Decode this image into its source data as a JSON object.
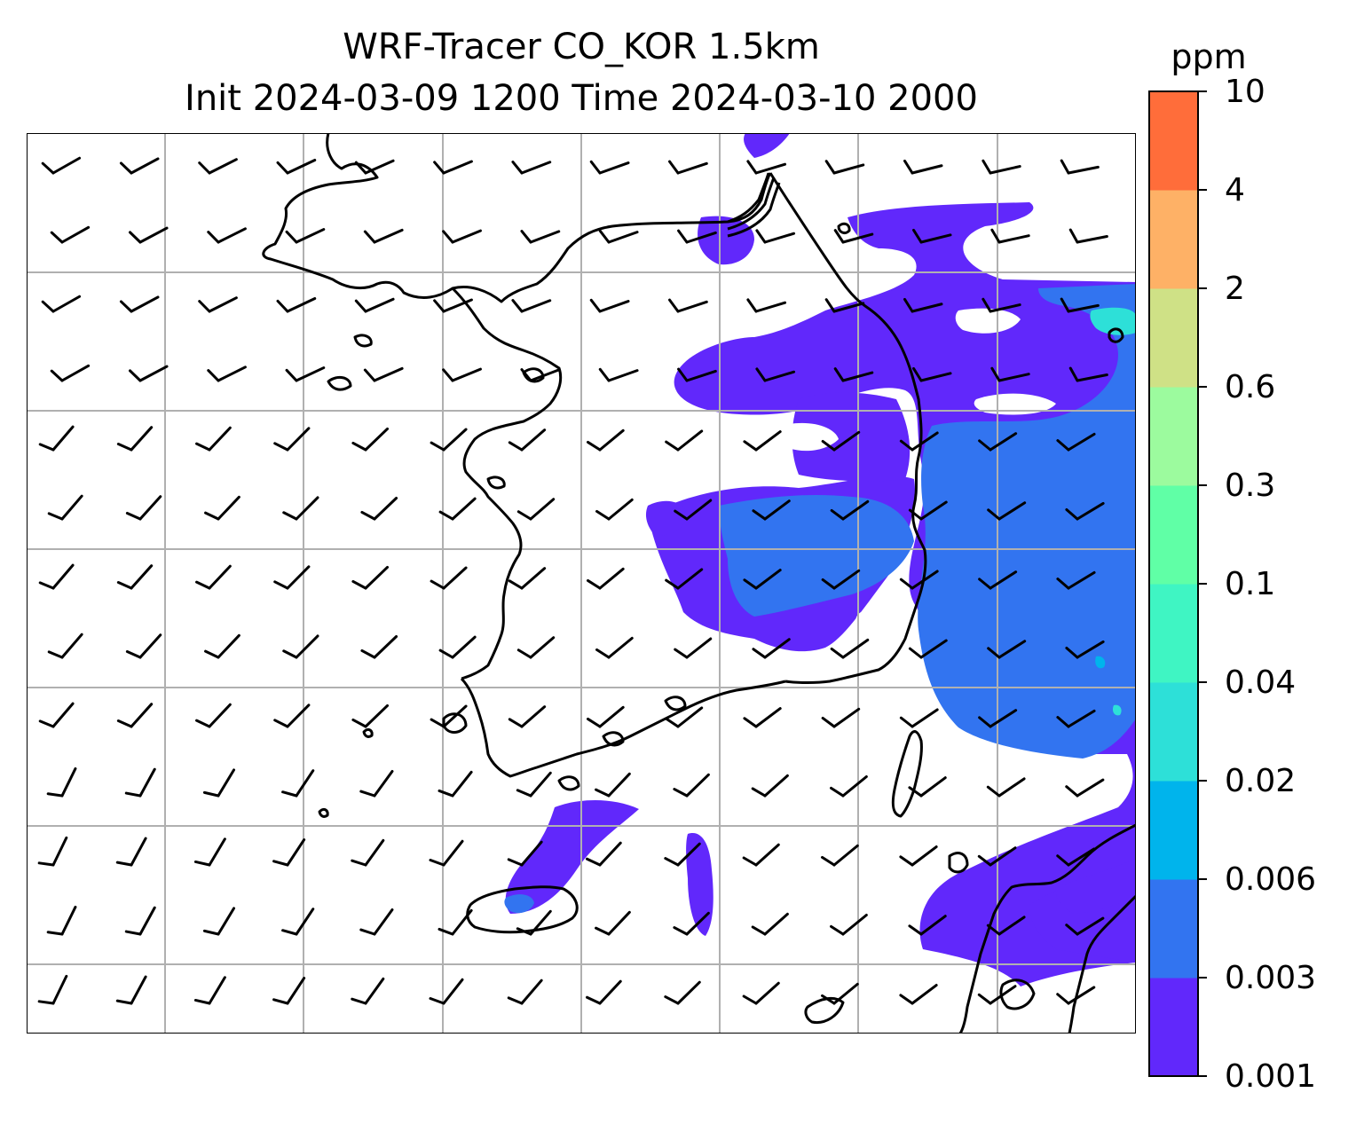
{
  "figure": {
    "title_line1": "WRF-Tracer CO_KOR 1.5km",
    "title_line2": "Init 2024-03-09 1200 Time 2024-03-10 2000"
  },
  "colorbar": {
    "unit": "ppm",
    "levels": [
      "0.001",
      "0.003",
      "0.006",
      "0.02",
      "0.04",
      "0.1",
      "0.3",
      "0.6",
      "2",
      "4",
      "10"
    ],
    "colors": [
      "#6128fb",
      "#3274f0",
      "#00b4ec",
      "#2de0d8",
      "#3ff5c3",
      "#60ffa6",
      "#9cfb9e",
      "#cfe186",
      "#feb166",
      "#ff6d3a",
      "#fe2a17"
    ]
  },
  "map": {
    "gridlines": true,
    "plume_colors": {
      "low": "#6128fb",
      "mid": "#3274f0",
      "high": "#2de0d8"
    },
    "coastline_color": "#000000",
    "wind_barbs": "black barbs on regular grid"
  }
}
